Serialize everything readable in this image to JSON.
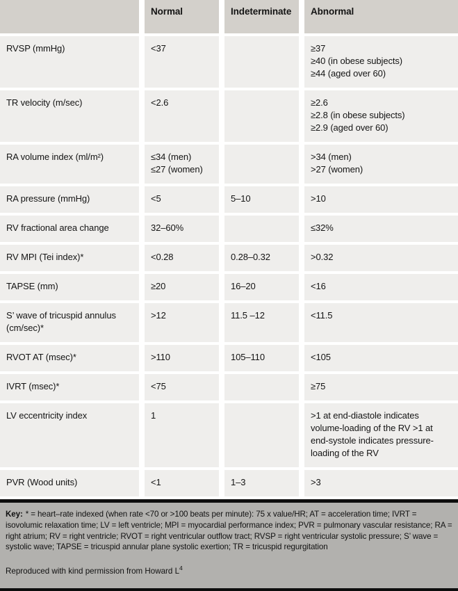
{
  "header": {
    "columns": [
      "",
      "Normal",
      "Indeterminate",
      "Abnormal"
    ]
  },
  "rows": [
    {
      "label": "RVSP (mmHg)",
      "normal": [
        "<37"
      ],
      "indeterminate": [],
      "abnormal": [
        "≥37",
        "≥40 (in obese subjects)",
        "≥44 (aged over 60)"
      ]
    },
    {
      "label": "TR velocity (m/sec)",
      "normal": [
        "<2.6"
      ],
      "indeterminate": [],
      "abnormal": [
        "≥2.6",
        "≥2.8 (in obese subjects)",
        "≥2.9 (aged over 60)"
      ]
    },
    {
      "label": "RA volume index (ml/m²)",
      "normal": [
        "≤34 (men)",
        "≤27 (women)"
      ],
      "indeterminate": [],
      "abnormal": [
        ">34 (men)",
        ">27 (women)"
      ]
    },
    {
      "label": "RA pressure (mmHg)",
      "normal": [
        "<5"
      ],
      "indeterminate": [
        "5–10"
      ],
      "abnormal": [
        ">10"
      ]
    },
    {
      "label": "RV fractional area change",
      "normal": [
        "32–60%"
      ],
      "indeterminate": [],
      "abnormal": [
        "≤32%"
      ]
    },
    {
      "label": "RV MPI (Tei index)*",
      "normal": [
        "<0.28"
      ],
      "indeterminate": [
        "0.28–0.32"
      ],
      "abnormal": [
        ">0.32"
      ]
    },
    {
      "label": "TAPSE (mm)",
      "normal": [
        "≥20"
      ],
      "indeterminate": [
        "16–20"
      ],
      "abnormal": [
        "<16"
      ]
    },
    {
      "label": "S’ wave of tricuspid annulus (cm/sec)*",
      "normal": [
        ">12"
      ],
      "indeterminate": [
        "11.5 –12"
      ],
      "abnormal": [
        "<11.5"
      ]
    },
    {
      "label": "RVOT AT (msec)*",
      "normal": [
        ">110"
      ],
      "indeterminate": [
        "105–110"
      ],
      "abnormal": [
        "<105"
      ]
    },
    {
      "label": "IVRT (msec)*",
      "normal": [
        "<75"
      ],
      "indeterminate": [],
      "abnormal": [
        "≥75"
      ]
    },
    {
      "label": "LV eccentricity index",
      "normal": [
        "1"
      ],
      "indeterminate": [],
      "abnormal": [
        ">1 at end-diastole indicates volume-loading of the RV >1 at end-systole indicates pressure-loading of the RV"
      ]
    },
    {
      "label": "PVR (Wood units)",
      "normal": [
        "<1"
      ],
      "indeterminate": [
        "1–3"
      ],
      "abnormal": [
        ">3"
      ]
    }
  ],
  "footer": {
    "key_label": "Key:",
    "key_text": "* = heart–rate indexed (when rate <70 or >100 beats per minute): 75 x value/HR; AT = acceleration time; IVRT = isovolumic relaxation time; LV = left ventricle; MPI = myocardial performance index; PVR = pulmonary vascular resistance; RA = right atrium; RV = right ventricle; RVOT = right ventricular outflow tract; RVSP = right ventricular systolic pressure; S’ wave = systolic wave; TAPSE = tricuspid annular plane systolic exertion; TR = tricuspid regurgitation",
    "attribution": "Reproduced with kind permission from Howard L",
    "attribution_ref": "4"
  },
  "colors": {
    "header_bg": "#d3d0cb",
    "row_bg": "#efeeec",
    "footer_bg": "#b2b1ae",
    "bar": "#0d0d0d",
    "text": "#141414"
  }
}
